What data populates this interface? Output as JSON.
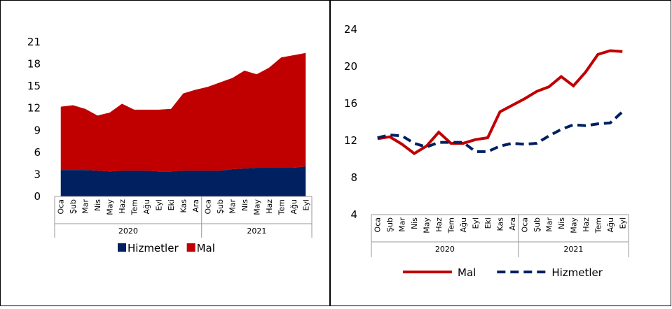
{
  "chart_data": [
    {
      "type": "stacked_area",
      "groups": [
        {
          "name": "2020",
          "categories": [
            "Oca",
            "Şub",
            "Mar",
            "Nis",
            "May",
            "Haz",
            "Tem",
            "Ağu",
            "Eyl",
            "Eki",
            "Kas",
            "Ara"
          ]
        },
        {
          "name": "2021",
          "categories": [
            "Oca",
            "Şub",
            "Mar",
            "Nis",
            "May",
            "Haz",
            "Tem",
            "Ağu",
            "Eyl"
          ]
        }
      ],
      "series": [
        {
          "name": "Hizmetler",
          "color": "#002060",
          "values": [
            3.6,
            3.6,
            3.6,
            3.5,
            3.4,
            3.5,
            3.5,
            3.5,
            3.4,
            3.4,
            3.5,
            3.5,
            3.5,
            3.5,
            3.7,
            3.8,
            3.9,
            3.9,
            3.9,
            3.9,
            4.1
          ]
        },
        {
          "name": "Mal",
          "color": "#c00000",
          "values": [
            8.6,
            8.8,
            8.3,
            7.5,
            8.0,
            9.1,
            8.3,
            8.3,
            8.4,
            8.5,
            10.5,
            11.0,
            11.4,
            12.0,
            12.4,
            13.3,
            12.7,
            13.6,
            15.0,
            15.3,
            15.4
          ]
        }
      ],
      "ylim": [
        0,
        21
      ],
      "yticks": [
        0,
        3,
        6,
        9,
        12,
        15,
        18,
        21
      ]
    },
    {
      "type": "line",
      "groups": [
        {
          "name": "2020",
          "categories": [
            "Oca",
            "Şub",
            "Mar",
            "Nis",
            "May",
            "Haz",
            "Tem",
            "Ağu",
            "Eyl",
            "Eki",
            "Kas",
            "Ara"
          ]
        },
        {
          "name": "2021",
          "categories": [
            "Oca",
            "Şub",
            "Mar",
            "Nis",
            "May",
            "Haz",
            "Tem",
            "Ağu",
            "Eyl"
          ]
        }
      ],
      "series": [
        {
          "name": "Mal",
          "color": "#c00000",
          "dashed": false,
          "values": [
            12.2,
            12.4,
            11.6,
            10.6,
            11.4,
            12.9,
            11.7,
            11.7,
            12.1,
            12.3,
            15.1,
            15.8,
            16.5,
            17.3,
            17.8,
            18.9,
            17.9,
            19.4,
            21.3,
            21.7,
            21.6
          ]
        },
        {
          "name": "Hizmetler",
          "color": "#002060",
          "dashed": true,
          "values": [
            12.3,
            12.6,
            12.5,
            11.7,
            11.3,
            11.8,
            11.8,
            11.8,
            10.8,
            10.8,
            11.4,
            11.7,
            11.6,
            11.7,
            12.5,
            13.2,
            13.7,
            13.6,
            13.8,
            13.9,
            15.1
          ]
        }
      ],
      "ylim": [
        4,
        24
      ],
      "yticks": [
        4,
        8,
        12,
        16,
        20,
        24
      ]
    }
  ]
}
